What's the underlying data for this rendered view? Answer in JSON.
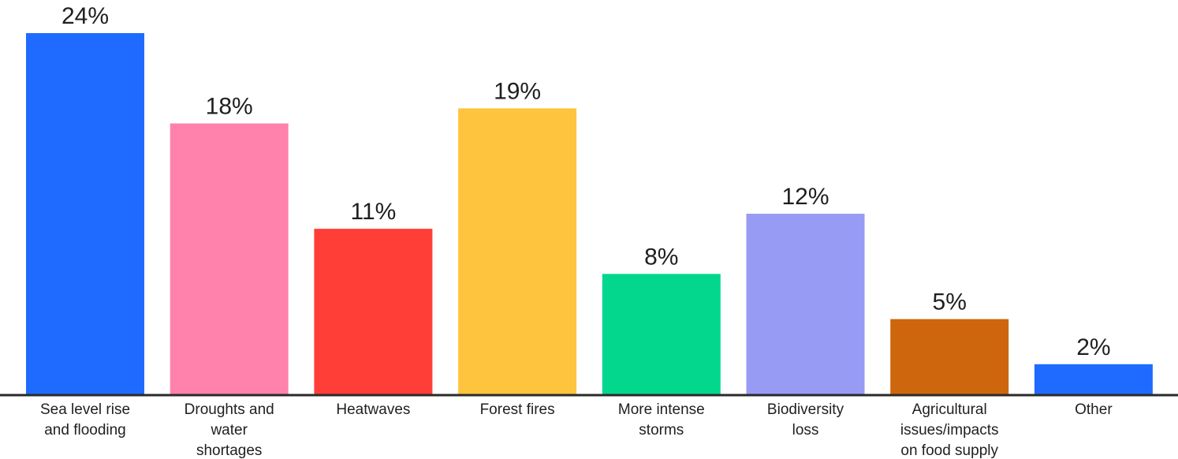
{
  "chart_data": {
    "type": "bar",
    "categories": [
      [
        "Sea level rise",
        "and flooding"
      ],
      [
        "Droughts and",
        "water",
        "shortages"
      ],
      [
        "Heatwaves"
      ],
      [
        "Forest fires"
      ],
      [
        "More intense",
        "storms"
      ],
      [
        "Biodiversity",
        "loss"
      ],
      [
        "Agricultural",
        "issues/impacts",
        "on food supply"
      ],
      [
        "Other"
      ]
    ],
    "values": [
      24,
      18,
      11,
      19,
      8,
      12,
      5,
      2
    ],
    "value_labels": [
      "24%",
      "18%",
      "11%",
      "19%",
      "8%",
      "12%",
      "5%",
      "2%"
    ],
    "colors": [
      "#1F6BFF",
      "#FF82AC",
      "#FF3E38",
      "#FFC43D",
      "#03D78E",
      "#989BF4",
      "#CE660E",
      "#1F6BFF"
    ],
    "ylim": [
      0,
      24
    ],
    "axis_color": "#2a2a2a",
    "grid": false
  }
}
